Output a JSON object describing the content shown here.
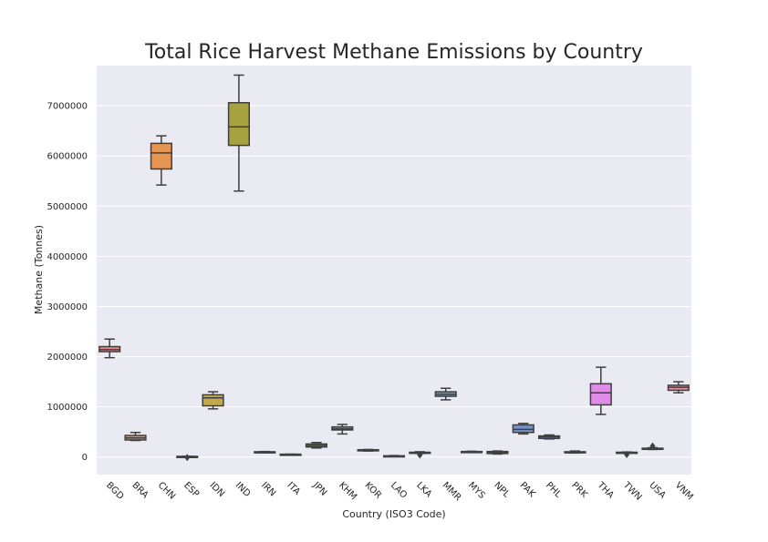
{
  "chart_data": {
    "type": "box",
    "title": "Total Rice Harvest Methane Emissions by Country",
    "xlabel": "Country (ISO3 Code)",
    "ylabel": "Methane (Tonnes)",
    "ylim": [
      -350000,
      7800000
    ],
    "yticks": [
      0,
      1000000,
      2000000,
      3000000,
      4000000,
      5000000,
      6000000,
      7000000
    ],
    "ytick_labels": [
      "0",
      "1000000",
      "2000000",
      "3000000",
      "4000000",
      "5000000",
      "6000000",
      "7000000"
    ],
    "grid": true,
    "categories": [
      "BGD",
      "BRA",
      "CHN",
      "ESP",
      "IDN",
      "IND",
      "IRN",
      "ITA",
      "JPN",
      "KHM",
      "KOR",
      "LAO",
      "LKA",
      "MMR",
      "MYS",
      "NPL",
      "PAK",
      "PHL",
      "PRK",
      "THA",
      "TWN",
      "USA",
      "VNM"
    ],
    "boxes": [
      {
        "category": "BGD",
        "whisker_low": 1980000,
        "q1": 2100000,
        "median": 2140000,
        "q3": 2200000,
        "whisker_high": 2350000,
        "outliers": [],
        "color": "#e8898f"
      },
      {
        "category": "BRA",
        "whisker_low": 330000,
        "q1": 340000,
        "median": 380000,
        "q3": 430000,
        "whisker_high": 490000,
        "outliers": [],
        "color": "#d98f6b"
      },
      {
        "category": "CHN",
        "whisker_low": 5420000,
        "q1": 5740000,
        "median": 6060000,
        "q3": 6250000,
        "whisker_high": 6400000,
        "outliers": [],
        "color": "#e69552"
      },
      {
        "category": "ESP",
        "whisker_low": 5000,
        "q1": 8000,
        "median": 10000,
        "q3": 12000,
        "whisker_high": 15000,
        "outliers": [
          -10000
        ],
        "color": "#b69c5a"
      },
      {
        "category": "IDN",
        "whisker_low": 960000,
        "q1": 1020000,
        "median": 1180000,
        "q3": 1240000,
        "whisker_high": 1300000,
        "outliers": [],
        "color": "#c4a84e"
      },
      {
        "category": "IND",
        "whisker_low": 5300000,
        "q1": 6210000,
        "median": 6580000,
        "q3": 7060000,
        "whisker_high": 7610000,
        "outliers": [],
        "color": "#a6a23f"
      },
      {
        "category": "IRN",
        "whisker_low": 85000,
        "q1": 90000,
        "median": 95000,
        "q3": 105000,
        "whisker_high": 110000,
        "outliers": [],
        "color": "#8fa64a"
      },
      {
        "category": "ITA",
        "whisker_low": 50000,
        "q1": 52000,
        "median": 54000,
        "q3": 56000,
        "whisker_high": 58000,
        "outliers": [],
        "color": "#6aa84f"
      },
      {
        "category": "JPN",
        "whisker_low": 180000,
        "q1": 200000,
        "median": 230000,
        "q3": 260000,
        "whisker_high": 290000,
        "outliers": [],
        "color": "#58ab6e"
      },
      {
        "category": "KHM",
        "whisker_low": 460000,
        "q1": 540000,
        "median": 560000,
        "q3": 600000,
        "whisker_high": 650000,
        "outliers": [],
        "color": "#4fae87"
      },
      {
        "category": "KOR",
        "whisker_low": 120000,
        "q1": 125000,
        "median": 130000,
        "q3": 145000,
        "whisker_high": 150000,
        "outliers": [],
        "color": "#4caf9c"
      },
      {
        "category": "LAO",
        "whisker_low": 10000,
        "q1": 15000,
        "median": 20000,
        "q3": 25000,
        "whisker_high": 30000,
        "outliers": [],
        "color": "#4eaeb0"
      },
      {
        "category": "LKA",
        "whisker_low": 70000,
        "q1": 80000,
        "median": 90000,
        "q3": 95000,
        "whisker_high": 105000,
        "outliers": [
          40000
        ],
        "color": "#4fadc1"
      },
      {
        "category": "MMR",
        "whisker_low": 1140000,
        "q1": 1210000,
        "median": 1250000,
        "q3": 1300000,
        "whisker_high": 1370000,
        "outliers": [],
        "color": "#55aad2"
      },
      {
        "category": "MYS",
        "whisker_low": 100000,
        "q1": 105000,
        "median": 108000,
        "q3": 110000,
        "whisker_high": 115000,
        "outliers": [],
        "color": "#62a3de"
      },
      {
        "category": "NPL",
        "whisker_low": 60000,
        "q1": 70000,
        "median": 90000,
        "q3": 110000,
        "whisker_high": 120000,
        "outliers": [],
        "color": "#7a9ae5"
      },
      {
        "category": "PAK",
        "whisker_low": 460000,
        "q1": 490000,
        "median": 550000,
        "q3": 640000,
        "whisker_high": 670000,
        "outliers": [],
        "color": "#7394d4"
      },
      {
        "category": "PHL",
        "whisker_low": 360000,
        "q1": 370000,
        "median": 400000,
        "q3": 420000,
        "whisker_high": 440000,
        "outliers": [],
        "color": "#a08ee6"
      },
      {
        "category": "PRK",
        "whisker_low": 80000,
        "q1": 90000,
        "median": 95000,
        "q3": 105000,
        "whisker_high": 120000,
        "outliers": [],
        "color": "#b78be6"
      },
      {
        "category": "THA",
        "whisker_low": 850000,
        "q1": 1040000,
        "median": 1280000,
        "q3": 1460000,
        "whisker_high": 1790000,
        "outliers": [],
        "color": "#dd8de8"
      },
      {
        "category": "TWN",
        "whisker_low": 80000,
        "q1": 85000,
        "median": 90000,
        "q3": 95000,
        "whisker_high": 100000,
        "outliers": [
          50000
        ],
        "color": "#e48ad4"
      },
      {
        "category": "USA",
        "whisker_low": 150000,
        "q1": 160000,
        "median": 165000,
        "q3": 175000,
        "whisker_high": 185000,
        "outliers": [
          220000
        ],
        "color": "#e88bbd"
      },
      {
        "category": "VNM",
        "whisker_low": 1280000,
        "q1": 1330000,
        "median": 1390000,
        "q3": 1430000,
        "whisker_high": 1500000,
        "outliers": [],
        "color": "#e98aa3"
      }
    ]
  }
}
